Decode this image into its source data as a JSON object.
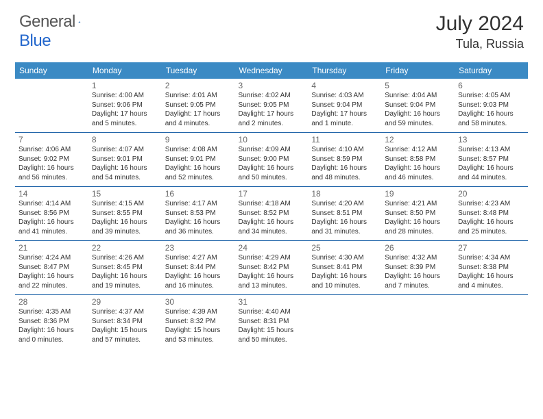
{
  "logo": {
    "part1": "General",
    "part2": "Blue"
  },
  "header": {
    "title": "July 2024",
    "location": "Tula, Russia"
  },
  "weekdays": [
    "Sunday",
    "Monday",
    "Tuesday",
    "Wednesday",
    "Thursday",
    "Friday",
    "Saturday"
  ],
  "colors": {
    "header_bg": "#3b8ac4",
    "header_text": "#ffffff",
    "border": "#2266aa",
    "daynum": "#666666",
    "text": "#333333",
    "logo_gray": "#555555",
    "logo_blue": "#2266cc"
  },
  "weeks": [
    [
      null,
      {
        "n": "1",
        "sr": "4:00 AM",
        "ss": "9:06 PM",
        "dl": "17 hours and 5 minutes."
      },
      {
        "n": "2",
        "sr": "4:01 AM",
        "ss": "9:05 PM",
        "dl": "17 hours and 4 minutes."
      },
      {
        "n": "3",
        "sr": "4:02 AM",
        "ss": "9:05 PM",
        "dl": "17 hours and 2 minutes."
      },
      {
        "n": "4",
        "sr": "4:03 AM",
        "ss": "9:04 PM",
        "dl": "17 hours and 1 minute."
      },
      {
        "n": "5",
        "sr": "4:04 AM",
        "ss": "9:04 PM",
        "dl": "16 hours and 59 minutes."
      },
      {
        "n": "6",
        "sr": "4:05 AM",
        "ss": "9:03 PM",
        "dl": "16 hours and 58 minutes."
      }
    ],
    [
      {
        "n": "7",
        "sr": "4:06 AM",
        "ss": "9:02 PM",
        "dl": "16 hours and 56 minutes."
      },
      {
        "n": "8",
        "sr": "4:07 AM",
        "ss": "9:01 PM",
        "dl": "16 hours and 54 minutes."
      },
      {
        "n": "9",
        "sr": "4:08 AM",
        "ss": "9:01 PM",
        "dl": "16 hours and 52 minutes."
      },
      {
        "n": "10",
        "sr": "4:09 AM",
        "ss": "9:00 PM",
        "dl": "16 hours and 50 minutes."
      },
      {
        "n": "11",
        "sr": "4:10 AM",
        "ss": "8:59 PM",
        "dl": "16 hours and 48 minutes."
      },
      {
        "n": "12",
        "sr": "4:12 AM",
        "ss": "8:58 PM",
        "dl": "16 hours and 46 minutes."
      },
      {
        "n": "13",
        "sr": "4:13 AM",
        "ss": "8:57 PM",
        "dl": "16 hours and 44 minutes."
      }
    ],
    [
      {
        "n": "14",
        "sr": "4:14 AM",
        "ss": "8:56 PM",
        "dl": "16 hours and 41 minutes."
      },
      {
        "n": "15",
        "sr": "4:15 AM",
        "ss": "8:55 PM",
        "dl": "16 hours and 39 minutes."
      },
      {
        "n": "16",
        "sr": "4:17 AM",
        "ss": "8:53 PM",
        "dl": "16 hours and 36 minutes."
      },
      {
        "n": "17",
        "sr": "4:18 AM",
        "ss": "8:52 PM",
        "dl": "16 hours and 34 minutes."
      },
      {
        "n": "18",
        "sr": "4:20 AM",
        "ss": "8:51 PM",
        "dl": "16 hours and 31 minutes."
      },
      {
        "n": "19",
        "sr": "4:21 AM",
        "ss": "8:50 PM",
        "dl": "16 hours and 28 minutes."
      },
      {
        "n": "20",
        "sr": "4:23 AM",
        "ss": "8:48 PM",
        "dl": "16 hours and 25 minutes."
      }
    ],
    [
      {
        "n": "21",
        "sr": "4:24 AM",
        "ss": "8:47 PM",
        "dl": "16 hours and 22 minutes."
      },
      {
        "n": "22",
        "sr": "4:26 AM",
        "ss": "8:45 PM",
        "dl": "16 hours and 19 minutes."
      },
      {
        "n": "23",
        "sr": "4:27 AM",
        "ss": "8:44 PM",
        "dl": "16 hours and 16 minutes."
      },
      {
        "n": "24",
        "sr": "4:29 AM",
        "ss": "8:42 PM",
        "dl": "16 hours and 13 minutes."
      },
      {
        "n": "25",
        "sr": "4:30 AM",
        "ss": "8:41 PM",
        "dl": "16 hours and 10 minutes."
      },
      {
        "n": "26",
        "sr": "4:32 AM",
        "ss": "8:39 PM",
        "dl": "16 hours and 7 minutes."
      },
      {
        "n": "27",
        "sr": "4:34 AM",
        "ss": "8:38 PM",
        "dl": "16 hours and 4 minutes."
      }
    ],
    [
      {
        "n": "28",
        "sr": "4:35 AM",
        "ss": "8:36 PM",
        "dl": "16 hours and 0 minutes."
      },
      {
        "n": "29",
        "sr": "4:37 AM",
        "ss": "8:34 PM",
        "dl": "15 hours and 57 minutes."
      },
      {
        "n": "30",
        "sr": "4:39 AM",
        "ss": "8:32 PM",
        "dl": "15 hours and 53 minutes."
      },
      {
        "n": "31",
        "sr": "4:40 AM",
        "ss": "8:31 PM",
        "dl": "15 hours and 50 minutes."
      },
      null,
      null,
      null
    ]
  ],
  "labels": {
    "sunrise": "Sunrise: ",
    "sunset": "Sunset: ",
    "daylight": "Daylight: "
  }
}
